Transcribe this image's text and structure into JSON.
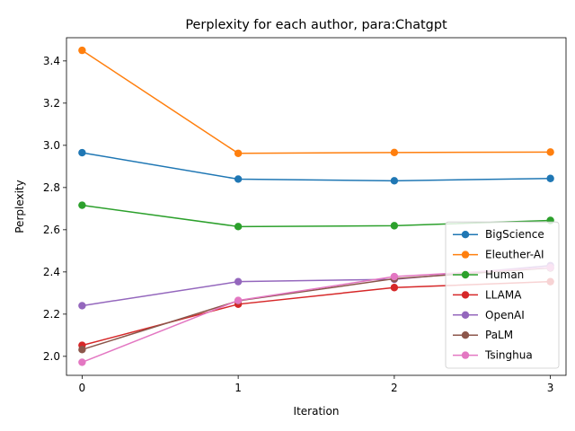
{
  "chart_data": {
    "type": "line",
    "title": "Perplexity for each author, para:Chatgpt",
    "xlabel": "Iteration",
    "ylabel": "Perplexity",
    "x": [
      0,
      1,
      2,
      3
    ],
    "xticks": [
      "0",
      "1",
      "2",
      "3"
    ],
    "yticks": [
      "2.0",
      "2.2",
      "2.4",
      "2.6",
      "2.8",
      "3.0",
      "3.2",
      "3.4"
    ],
    "xlim": [
      -0.1,
      3.1
    ],
    "ylim": [
      1.91,
      3.51
    ],
    "grid": false,
    "legend_position": "lower-right",
    "series": [
      {
        "name": "BigScience",
        "color": "#1f77b4",
        "values": [
          2.965,
          2.84,
          2.832,
          2.843
        ]
      },
      {
        "name": "Eleuther-AI",
        "color": "#ff7f0e",
        "values": [
          3.45,
          2.962,
          2.966,
          2.968
        ]
      },
      {
        "name": "Human",
        "color": "#2ca02c",
        "values": [
          2.716,
          2.615,
          2.619,
          2.644
        ]
      },
      {
        "name": "LLAMA",
        "color": "#d62728",
        "values": [
          2.052,
          2.247,
          2.326,
          2.354
        ]
      },
      {
        "name": "OpenAI",
        "color": "#9467bd",
        "values": [
          2.24,
          2.354,
          2.365,
          2.43
        ]
      },
      {
        "name": "PaLM",
        "color": "#8c564b",
        "values": [
          2.032,
          2.263,
          2.368,
          2.419
        ]
      },
      {
        "name": "Tsinghua",
        "color": "#e377c2",
        "values": [
          1.972,
          2.265,
          2.378,
          2.421
        ]
      }
    ]
  }
}
